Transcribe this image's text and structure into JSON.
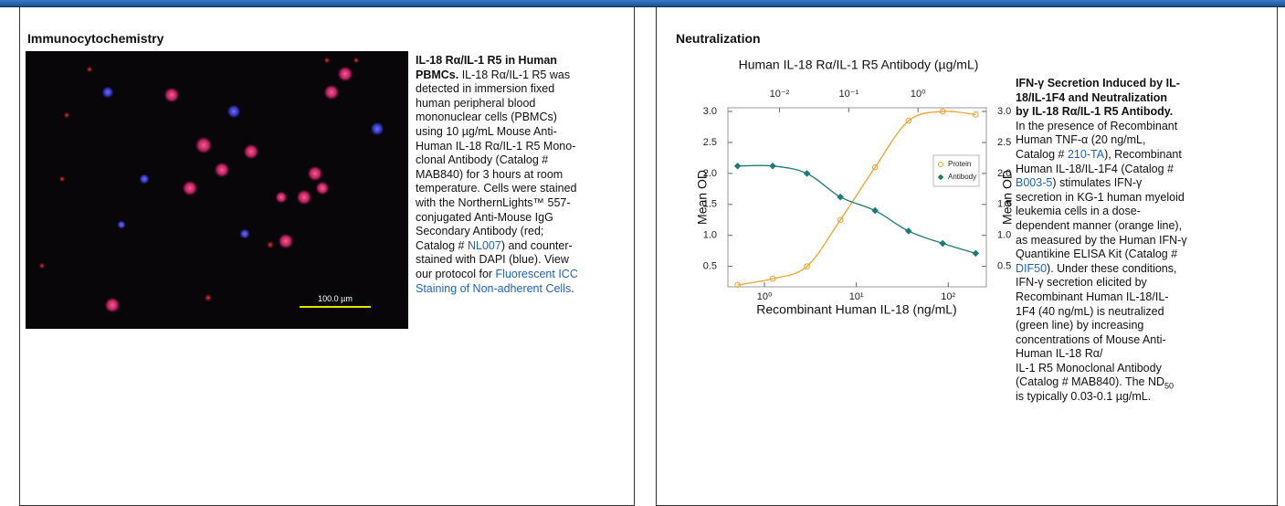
{
  "left_panel": {
    "title": "Immunocytochemistry",
    "image": {
      "scale_bar_label": "100.0 µm"
    },
    "caption": [
      [
        {
          "text": "IL-18 Rα/IL-1 R5 in Human",
          "style": "bold"
        }
      ],
      [
        {
          "text": "PBMCs.",
          "style": "bold"
        },
        {
          "text": " IL-18 Rα/IL-1 R5 was"
        }
      ],
      [
        {
          "text": "detected in immersion fixed"
        }
      ],
      [
        {
          "text": "human peripheral blood"
        }
      ],
      [
        {
          "text": "mononuclear cells (PBMCs)"
        }
      ],
      [
        {
          "text": "using 10 µg/mL Mouse Anti-"
        }
      ],
      [
        {
          "text": "Human IL-18 Rα/IL-1 R5 Mono-"
        }
      ],
      [
        {
          "text": "clonal Antibody (Catalog #"
        }
      ],
      [
        {
          "text": "MAB840) for 3 hours at room"
        }
      ],
      [
        {
          "text": "temperature. Cells were stained"
        }
      ],
      [
        {
          "text": "with the NorthernLights™ 557-"
        }
      ],
      [
        {
          "text": "conjugated Anti-Mouse IgG"
        }
      ],
      [
        {
          "text": "Secondary Antibody (red;"
        }
      ],
      [
        {
          "text": "Catalog # "
        },
        {
          "text": "NL007",
          "style": "link"
        },
        {
          "text": ") and counter-"
        }
      ],
      [
        {
          "text": "stained with DAPI (blue). View"
        }
      ],
      [
        {
          "text": "our protocol for "
        },
        {
          "text": "Fluorescent ICC",
          "style": "link"
        }
      ],
      [
        {
          "text": "Staining of Non-adherent Cells",
          "style": "link"
        },
        {
          "text": "."
        }
      ]
    ]
  },
  "right_panel": {
    "title": "Neutralization",
    "caption": [
      [
        {
          "text": "IFN-γ Secretion Induced by IL-",
          "style": "bold"
        }
      ],
      [
        {
          "text": "18/IL-1F4 and Neutralization",
          "style": "bold"
        }
      ],
      [
        {
          "text": "by IL-18 Rα/IL-1 R5 Antibody.",
          "style": "bold"
        }
      ],
      [
        {
          "text": "In the presence of Recombinant"
        }
      ],
      [
        {
          "text": "Human TNF-α (20 ng/mL,"
        }
      ],
      [
        {
          "text": "Catalog # "
        },
        {
          "text": "210-TA",
          "style": "link"
        },
        {
          "text": "), Recombinant"
        }
      ],
      [
        {
          "text": "Human IL-18/IL-1F4 (Catalog #"
        }
      ],
      [
        {
          "text": "B003-5",
          "style": "link"
        },
        {
          "text": ") stimulates IFN-γ"
        }
      ],
      [
        {
          "text": "secretion in KG-1 human myeloid"
        }
      ],
      [
        {
          "text": "leukemia cells in a dose-"
        }
      ],
      [
        {
          "text": "dependent manner (orange line),"
        }
      ],
      [
        {
          "text": "as measured by the Human IFN-γ"
        }
      ],
      [
        {
          "text": "Quantikine ELISA Kit (Catalog #"
        }
      ],
      [
        {
          "text": "DIF50",
          "style": "link"
        },
        {
          "text": "). Under these conditions,"
        }
      ],
      [
        {
          "text": "IFN-γ secretion elicited by"
        }
      ],
      [
        {
          "text": "Recombinant Human IL-18/IL-"
        }
      ],
      [
        {
          "text": "1F4 (40 ng/mL) is neutralized"
        }
      ],
      [
        {
          "text": "(green line) by increasing"
        }
      ],
      [
        {
          "text": "concentrations of Mouse Anti-"
        }
      ],
      [
        {
          "text": "Human IL-18 Rα/"
        }
      ],
      [
        {
          "text": "IL-1 R5 Monoclonal Antibody"
        }
      ],
      [
        {
          "text": "(Catalog # MAB840). The ND"
        },
        {
          "text": "50",
          "style": "sub"
        }
      ],
      [
        {
          "text": "is typically 0.03-0.1 µg/mL."
        }
      ]
    ]
  },
  "chart_data": {
    "type": "scatter",
    "title": "Human IL-18 Rα/IL-1 R5 Antibody (µg/mL)",
    "xlabel": "Recombinant Human IL-18 (ng/mL)",
    "ylabel": "Mean OD",
    "y2label": "Mean OD",
    "x": [
      0.51,
      1.23,
      2.9,
      6.7,
      16,
      37,
      87,
      199
    ],
    "xlim": [
      0.4,
      260
    ],
    "x_log": true,
    "xticks": [
      {
        "value": 1,
        "label": "10⁰"
      },
      {
        "value": 10,
        "label": "10¹"
      },
      {
        "value": 100,
        "label": "10²"
      }
    ],
    "x2lim": [
      0.0018,
      9.7
    ],
    "x2_log": true,
    "x2ticks": [
      {
        "value": 0.01,
        "label": "10⁻²"
      },
      {
        "value": 0.1,
        "label": "10⁻¹"
      },
      {
        "value": 1,
        "label": "10⁰"
      }
    ],
    "ylim": [
      0.17,
      3.06
    ],
    "yticks": [
      0.5,
      1.0,
      1.5,
      2.0,
      2.5,
      3.0
    ],
    "y2lim": [
      0.17,
      3.06
    ],
    "y2ticks": [
      0.5,
      1.0,
      1.5,
      2.0,
      2.5,
      3.0
    ],
    "series": [
      {
        "name": "Protein",
        "color": "#eda230",
        "marker": "circle",
        "values": [
          0.2,
          0.3,
          0.5,
          1.25,
          2.1,
          2.85,
          3.0,
          2.95
        ]
      },
      {
        "name": "Antibody",
        "color": "#1e7b73",
        "marker": "diamond",
        "values": [
          2.12,
          2.12,
          2.0,
          1.62,
          1.4,
          1.07,
          0.87,
          0.71
        ]
      }
    ],
    "legend": "upper-right"
  }
}
